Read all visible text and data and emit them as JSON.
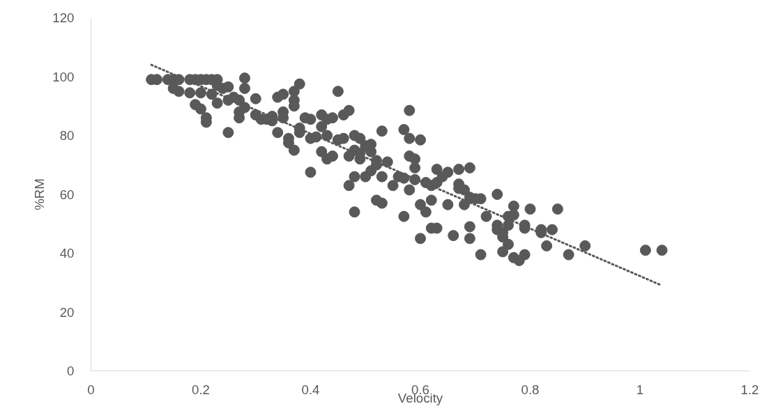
{
  "chart_data": {
    "type": "scatter",
    "xlabel": "Velocity",
    "ylabel": "%RM",
    "xlim": [
      0,
      1.2
    ],
    "ylim": [
      0,
      120
    ],
    "xticks": [
      0,
      0.2,
      0.4,
      0.6,
      0.8,
      1,
      1.2
    ],
    "yticks": [
      0,
      20,
      40,
      60,
      80,
      100,
      120
    ],
    "grid": false,
    "series": [
      {
        "color": "#595959",
        "marker": "circle",
        "x": [
          0.11,
          0.12,
          0.14,
          0.15,
          0.16,
          0.18,
          0.19,
          0.2,
          0.21,
          0.22,
          0.23,
          0.28,
          0.15,
          0.16,
          0.18,
          0.2,
          0.22,
          0.23,
          0.24,
          0.25,
          0.25,
          0.23,
          0.19,
          0.2,
          0.21,
          0.21,
          0.25,
          0.26,
          0.27,
          0.27,
          0.27,
          0.28,
          0.28,
          0.3,
          0.3,
          0.31,
          0.32,
          0.33,
          0.33,
          0.34,
          0.34,
          0.35,
          0.35,
          0.35,
          0.36,
          0.36,
          0.37,
          0.37,
          0.37,
          0.37,
          0.38,
          0.38,
          0.38,
          0.39,
          0.4,
          0.4,
          0.4,
          0.41,
          0.42,
          0.42,
          0.42,
          0.43,
          0.43,
          0.43,
          0.44,
          0.44,
          0.45,
          0.45,
          0.46,
          0.46,
          0.47,
          0.47,
          0.47,
          0.48,
          0.48,
          0.48,
          0.48,
          0.49,
          0.49,
          0.49,
          0.5,
          0.5,
          0.51,
          0.51,
          0.51,
          0.52,
          0.52,
          0.52,
          0.53,
          0.53,
          0.53,
          0.54,
          0.55,
          0.56,
          0.57,
          0.57,
          0.57,
          0.58,
          0.58,
          0.58,
          0.58,
          0.59,
          0.59,
          0.59,
          0.6,
          0.6,
          0.6,
          0.61,
          0.61,
          0.62,
          0.62,
          0.62,
          0.63,
          0.63,
          0.63,
          0.64,
          0.65,
          0.65,
          0.66,
          0.67,
          0.67,
          0.67,
          0.68,
          0.68,
          0.69,
          0.69,
          0.69,
          0.69,
          0.7,
          0.71,
          0.71,
          0.72,
          0.74,
          0.74,
          0.74,
          0.75,
          0.75,
          0.75,
          0.76,
          0.76,
          0.76,
          0.77,
          0.77,
          0.77,
          0.78,
          0.79,
          0.79,
          0.79,
          0.8,
          0.82,
          0.82,
          0.83,
          0.84,
          0.85,
          0.87,
          0.9,
          1.01,
          1.04
        ],
        "values": [
          99,
          99,
          99,
          99,
          99,
          99,
          99,
          99,
          99,
          99,
          99,
          99.5,
          96,
          95,
          94.5,
          94.5,
          94,
          97,
          96,
          96.5,
          92,
          91,
          90.5,
          89,
          86,
          84.5,
          81,
          93,
          92,
          88,
          86,
          89.5,
          96,
          92.5,
          87,
          85.5,
          85.5,
          86.5,
          85,
          93,
          81,
          94,
          88,
          86,
          79,
          77.5,
          95,
          92,
          90,
          75,
          97.5,
          82.5,
          81,
          86,
          85.5,
          79,
          67.5,
          79.5,
          87,
          83,
          74.5,
          85.5,
          80,
          72,
          86,
          73,
          95,
          78.5,
          87,
          79,
          88.5,
          73,
          63,
          80,
          75,
          66,
          54,
          79,
          74,
          72,
          76.5,
          66,
          77,
          74.5,
          68,
          71.5,
          70,
          58,
          81.5,
          66,
          57,
          71,
          63,
          66,
          82,
          65.5,
          52.5,
          88.5,
          79,
          73,
          61.5,
          72,
          69,
          65,
          78.5,
          56.5,
          45,
          64,
          54,
          63,
          58,
          48.5,
          68.5,
          64,
          48.5,
          66,
          67.5,
          56.5,
          46,
          68.5,
          63.5,
          62,
          61.5,
          56.5,
          69,
          59,
          49,
          45,
          58.5,
          58.5,
          39.5,
          52.5,
          60,
          49.5,
          48,
          47,
          40.5,
          45.5,
          52.5,
          49.5,
          43,
          56,
          53,
          38.5,
          37.5,
          49.5,
          48.5,
          39.5,
          55,
          48,
          47,
          42.5,
          48,
          55,
          39.5,
          42.5,
          41,
          41
        ]
      },
      {
        "type": "line",
        "color": "#595959",
        "line_style": "dotted",
        "marker": "none",
        "x": [
          0.11,
          1.04
        ],
        "values": [
          104,
          29
        ]
      }
    ]
  }
}
